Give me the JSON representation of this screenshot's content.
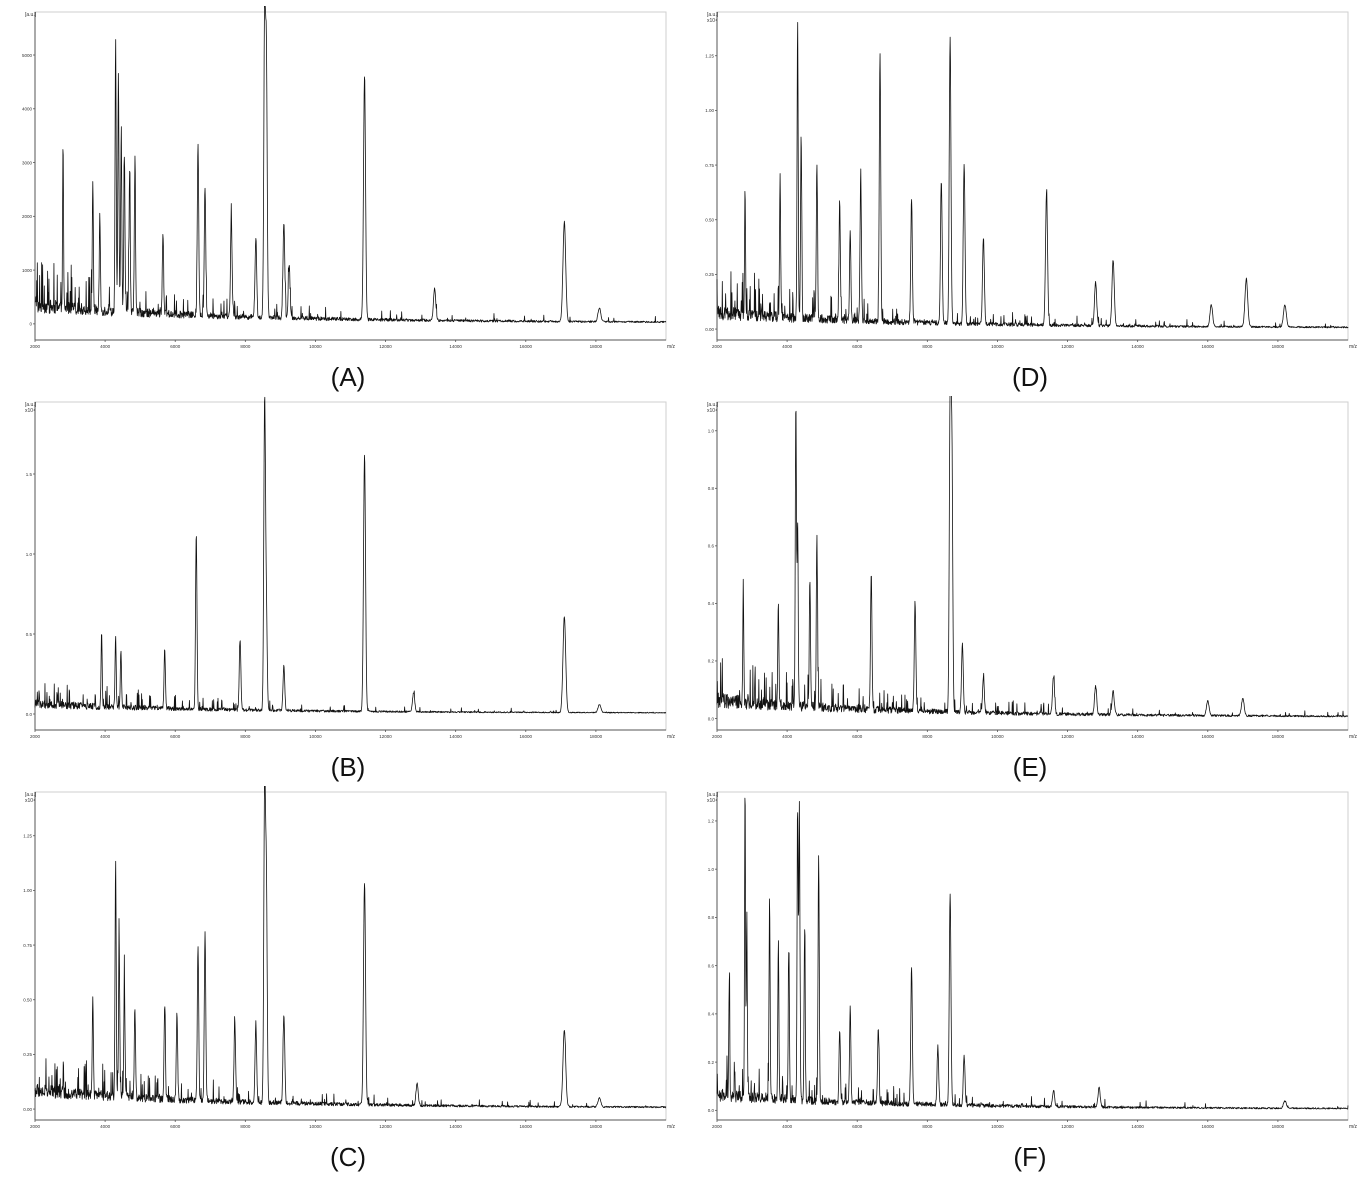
{
  "panels": [
    {
      "caption": "(A)",
      "y_unit_label": "[a.u.]",
      "y_scale_label": "",
      "x_unit_label": "m/z",
      "chart_data": {
        "type": "line",
        "xlabel": "m/z",
        "ylabel": "[a.u.]",
        "xlim": [
          2000,
          20000
        ],
        "ylim": [
          -300,
          5800
        ],
        "x_ticks": [
          "2000",
          "4000",
          "6000",
          "8000",
          "10000",
          "12000",
          "14000",
          "16000",
          "18000"
        ],
        "y_ticks": [
          "0",
          "1000",
          "2000",
          "3000",
          "4000",
          "5000"
        ],
        "y_tick_values": [
          0,
          1000,
          2000,
          3000,
          4000,
          5000
        ],
        "baseline": 280,
        "baseline_end": 20,
        "noise": 260,
        "peaks": [
          [
            2800,
            3000
          ],
          [
            3650,
            2400
          ],
          [
            3850,
            1800
          ],
          [
            4300,
            5050
          ],
          [
            4380,
            4400
          ],
          [
            4460,
            3300
          ],
          [
            4550,
            2900
          ],
          [
            4700,
            2600
          ],
          [
            4850,
            2700
          ],
          [
            5650,
            1500
          ],
          [
            6650,
            3150
          ],
          [
            6850,
            2400
          ],
          [
            7600,
            1850
          ],
          [
            8300,
            1500
          ],
          [
            8550,
            5200
          ],
          [
            8600,
            4700
          ],
          [
            9100,
            1800
          ],
          [
            9250,
            1000
          ],
          [
            11400,
            4500
          ],
          [
            13400,
            600
          ],
          [
            17100,
            1850
          ],
          [
            18100,
            250
          ]
        ]
      }
    },
    {
      "caption": "(B)",
      "y_unit_label": "[a.u.]",
      "y_scale_label": "x10⁴",
      "x_unit_label": "m/z",
      "chart_data": {
        "type": "line",
        "xlabel": "m/z",
        "ylabel": "[a.u.]",
        "xlim": [
          2000,
          20000
        ],
        "ylim": [
          -0.1,
          1.95
        ],
        "x_ticks": [
          "2000",
          "4000",
          "6000",
          "8000",
          "10000",
          "12000",
          "14000",
          "16000",
          "18000"
        ],
        "y_ticks": [
          "0.0",
          "0.5",
          "1.0",
          "1.5"
        ],
        "y_tick_values": [
          0,
          0.5,
          1.0,
          1.5
        ],
        "baseline": 0.05,
        "baseline_end": 0.005,
        "noise": 0.05,
        "peaks": [
          [
            3900,
            0.48
          ],
          [
            4300,
            0.45
          ],
          [
            4450,
            0.36
          ],
          [
            5700,
            0.38
          ],
          [
            6600,
            1.1
          ],
          [
            7850,
            0.44
          ],
          [
            8550,
            1.9
          ],
          [
            8600,
            0.6
          ],
          [
            9100,
            0.28
          ],
          [
            11400,
            1.6
          ],
          [
            12800,
            0.12
          ],
          [
            17100,
            0.6
          ],
          [
            18100,
            0.05
          ]
        ]
      }
    },
    {
      "caption": "(C)",
      "y_unit_label": "[a.u.]",
      "y_scale_label": "x10⁴",
      "x_unit_label": "m/z",
      "chart_data": {
        "type": "line",
        "xlabel": "m/z",
        "ylabel": "[a.u.]",
        "xlim": [
          2000,
          20000
        ],
        "ylim": [
          -0.05,
          1.45
        ],
        "x_ticks": [
          "2000",
          "4000",
          "6000",
          "8000",
          "10000",
          "12000",
          "14000",
          "16000",
          "18000"
        ],
        "y_ticks": [
          "0.00",
          "0.25",
          "0.50",
          "0.75",
          "1.00",
          "1.25"
        ],
        "y_tick_values": [
          0,
          0.25,
          0.5,
          0.75,
          1.0,
          1.25
        ],
        "baseline": 0.07,
        "baseline_end": 0.005,
        "noise": 0.06,
        "peaks": [
          [
            3650,
            0.46
          ],
          [
            4300,
            1.1
          ],
          [
            4400,
            0.7
          ],
          [
            4550,
            0.53
          ],
          [
            4850,
            0.42
          ],
          [
            5700,
            0.42
          ],
          [
            6050,
            0.4
          ],
          [
            6650,
            0.7
          ],
          [
            6850,
            0.76
          ],
          [
            7700,
            0.36
          ],
          [
            8300,
            0.35
          ],
          [
            8550,
            1.4
          ],
          [
            8600,
            0.97
          ],
          [
            9100,
            0.41
          ],
          [
            11400,
            1.02
          ],
          [
            12900,
            0.1
          ],
          [
            17100,
            0.35
          ],
          [
            18100,
            0.04
          ]
        ]
      }
    },
    {
      "caption": "(D)",
      "y_unit_label": "[a.u.]",
      "y_scale_label": "x10⁴",
      "x_unit_label": "m/z",
      "chart_data": {
        "type": "line",
        "xlabel": "m/z",
        "ylabel": "[a.u.]",
        "xlim": [
          2000,
          20000
        ],
        "ylim": [
          -0.05,
          1.45
        ],
        "x_ticks": [
          "2000",
          "4000",
          "6000",
          "8000",
          "10000",
          "12000",
          "14000",
          "16000",
          "18000"
        ],
        "y_ticks": [
          "0.00",
          "0.25",
          "0.50",
          "0.75",
          "1.00",
          "1.25"
        ],
        "y_tick_values": [
          0,
          0.25,
          0.5,
          0.75,
          1.0,
          1.25
        ],
        "baseline": 0.06,
        "baseline_end": 0.005,
        "noise": 0.06,
        "peaks": [
          [
            2800,
            0.57
          ],
          [
            3800,
            0.66
          ],
          [
            4300,
            1.35
          ],
          [
            4400,
            0.83
          ],
          [
            4850,
            0.71
          ],
          [
            5500,
            0.55
          ],
          [
            5800,
            0.4
          ],
          [
            6100,
            0.67
          ],
          [
            6650,
            1.22
          ],
          [
            7550,
            0.57
          ],
          [
            8400,
            0.65
          ],
          [
            8650,
            1.3
          ],
          [
            9050,
            0.73
          ],
          [
            9600,
            0.4
          ],
          [
            11400,
            0.6
          ],
          [
            12800,
            0.2
          ],
          [
            13300,
            0.3
          ],
          [
            16100,
            0.1
          ],
          [
            17100,
            0.22
          ],
          [
            18200,
            0.1
          ]
        ]
      }
    },
    {
      "caption": "(E)",
      "y_unit_label": "[a.u.]",
      "y_scale_label": "x10⁴",
      "x_unit_label": "m/z",
      "chart_data": {
        "type": "line",
        "xlabel": "m/z",
        "ylabel": "[a.u.]",
        "xlim": [
          2000,
          20000
        ],
        "ylim": [
          -0.04,
          1.1
        ],
        "x_ticks": [
          "2000",
          "4000",
          "6000",
          "8000",
          "10000",
          "12000",
          "14000",
          "16000",
          "18000"
        ],
        "y_ticks": [
          "0.0",
          "0.2",
          "0.4",
          "0.6",
          "0.8",
          "1.0"
        ],
        "y_tick_values": [
          0,
          0.2,
          0.4,
          0.6,
          0.8,
          1.0
        ],
        "baseline": 0.05,
        "baseline_end": 0.005,
        "noise": 0.05,
        "peaks": [
          [
            2750,
            0.41
          ],
          [
            3750,
            0.36
          ],
          [
            4250,
            1.07
          ],
          [
            4300,
            0.65
          ],
          [
            4650,
            0.45
          ],
          [
            4850,
            0.59
          ],
          [
            6400,
            0.48
          ],
          [
            7650,
            0.38
          ],
          [
            8650,
            1.06
          ],
          [
            8700,
            0.9
          ],
          [
            9000,
            0.24
          ],
          [
            9600,
            0.12
          ],
          [
            11600,
            0.13
          ],
          [
            12800,
            0.1
          ],
          [
            13300,
            0.08
          ],
          [
            16000,
            0.05
          ],
          [
            17000,
            0.06
          ]
        ]
      }
    },
    {
      "caption": "(F)",
      "y_unit_label": "[a.u.]",
      "y_scale_label": "x10⁴",
      "x_unit_label": "m/z",
      "chart_data": {
        "type": "line",
        "xlabel": "m/z",
        "ylabel": "[a.u.]",
        "xlim": [
          2000,
          20000
        ],
        "ylim": [
          -0.04,
          1.32
        ],
        "x_ticks": [
          "2000",
          "4000",
          "6000",
          "8000",
          "10000",
          "12000",
          "14000",
          "16000",
          "18000"
        ],
        "y_ticks": [
          "0.0",
          "0.2",
          "0.4",
          "0.6",
          "0.8",
          "1.0",
          "1.2"
        ],
        "y_tick_values": [
          0,
          0.2,
          0.4,
          0.6,
          0.8,
          1.0,
          1.2
        ],
        "baseline": 0.05,
        "baseline_end": 0.005,
        "noise": 0.05,
        "peaks": [
          [
            2350,
            0.5
          ],
          [
            2800,
            1.3
          ],
          [
            2850,
            0.76
          ],
          [
            3500,
            0.84
          ],
          [
            3750,
            0.66
          ],
          [
            4050,
            0.63
          ],
          [
            4300,
            1.2
          ],
          [
            4350,
            1.21
          ],
          [
            4500,
            0.71
          ],
          [
            4900,
            1.02
          ],
          [
            5500,
            0.3
          ],
          [
            5800,
            0.39
          ],
          [
            6600,
            0.31
          ],
          [
            7550,
            0.57
          ],
          [
            8300,
            0.24
          ],
          [
            8650,
            0.88
          ],
          [
            9050,
            0.2
          ],
          [
            11600,
            0.07
          ],
          [
            12900,
            0.08
          ],
          [
            18200,
            0.03
          ]
        ]
      }
    }
  ]
}
